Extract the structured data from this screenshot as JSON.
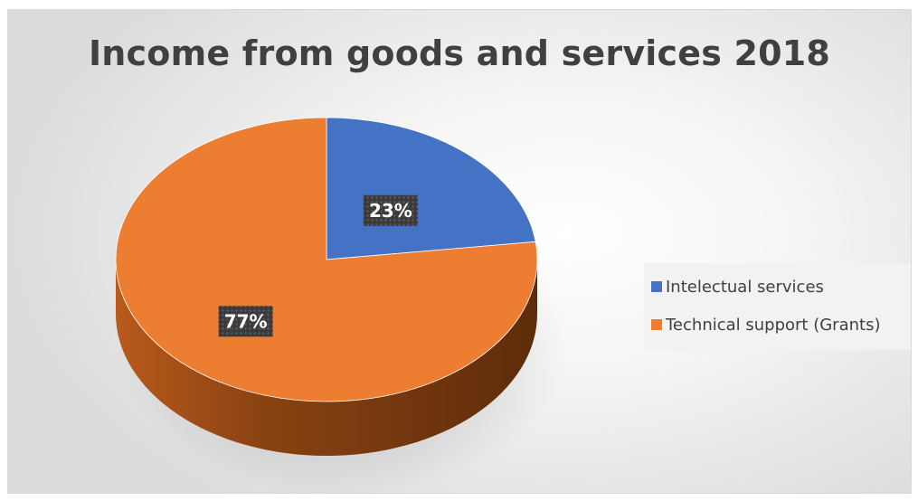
{
  "chart_data": {
    "type": "pie",
    "title": "Income from goods and services 2018",
    "categories": [
      "Intelectual services",
      "Technical support (Grants)"
    ],
    "values": [
      23,
      77
    ],
    "labels": [
      "23%",
      "77%"
    ],
    "colors": [
      "#4472c4",
      "#ed7d31"
    ],
    "legend_position": "right",
    "style": "3d"
  }
}
